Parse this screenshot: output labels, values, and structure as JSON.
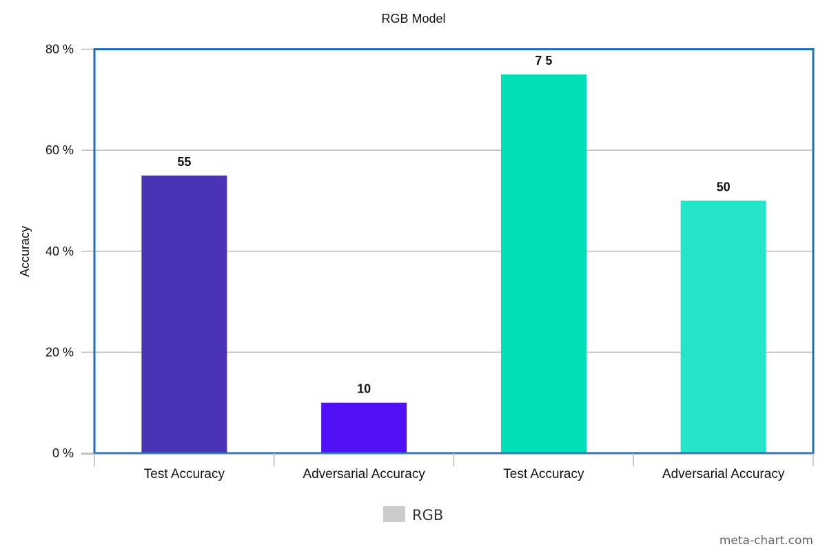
{
  "chart_data": {
    "type": "bar",
    "title": "RGB Model",
    "xlabel": "",
    "ylabel": "Accuracy",
    "ylim": [
      0,
      80
    ],
    "y_ticks": [
      0,
      20,
      40,
      60,
      80
    ],
    "y_tick_suffix": " %",
    "grid": true,
    "legend_position": "bottom-center",
    "categories": [
      "Test Accuracy",
      "Adversarial Accuracy",
      "Test Accuracy",
      "Adversarial Accuracy"
    ],
    "series": [
      {
        "name": "RGB",
        "values": [
          55,
          10,
          75,
          50
        ],
        "colors": [
          "#4B33B5",
          "#5012F5",
          "#00DFB6",
          "#24E5C9"
        ],
        "legend_color": "#CCCCCC"
      }
    ],
    "data_labels": [
      "55",
      "10",
      "7 5",
      "50"
    ],
    "frame_color": "#1F6FB5",
    "grid_color": "#BBBBBB"
  },
  "watermark": "meta-chart.com"
}
